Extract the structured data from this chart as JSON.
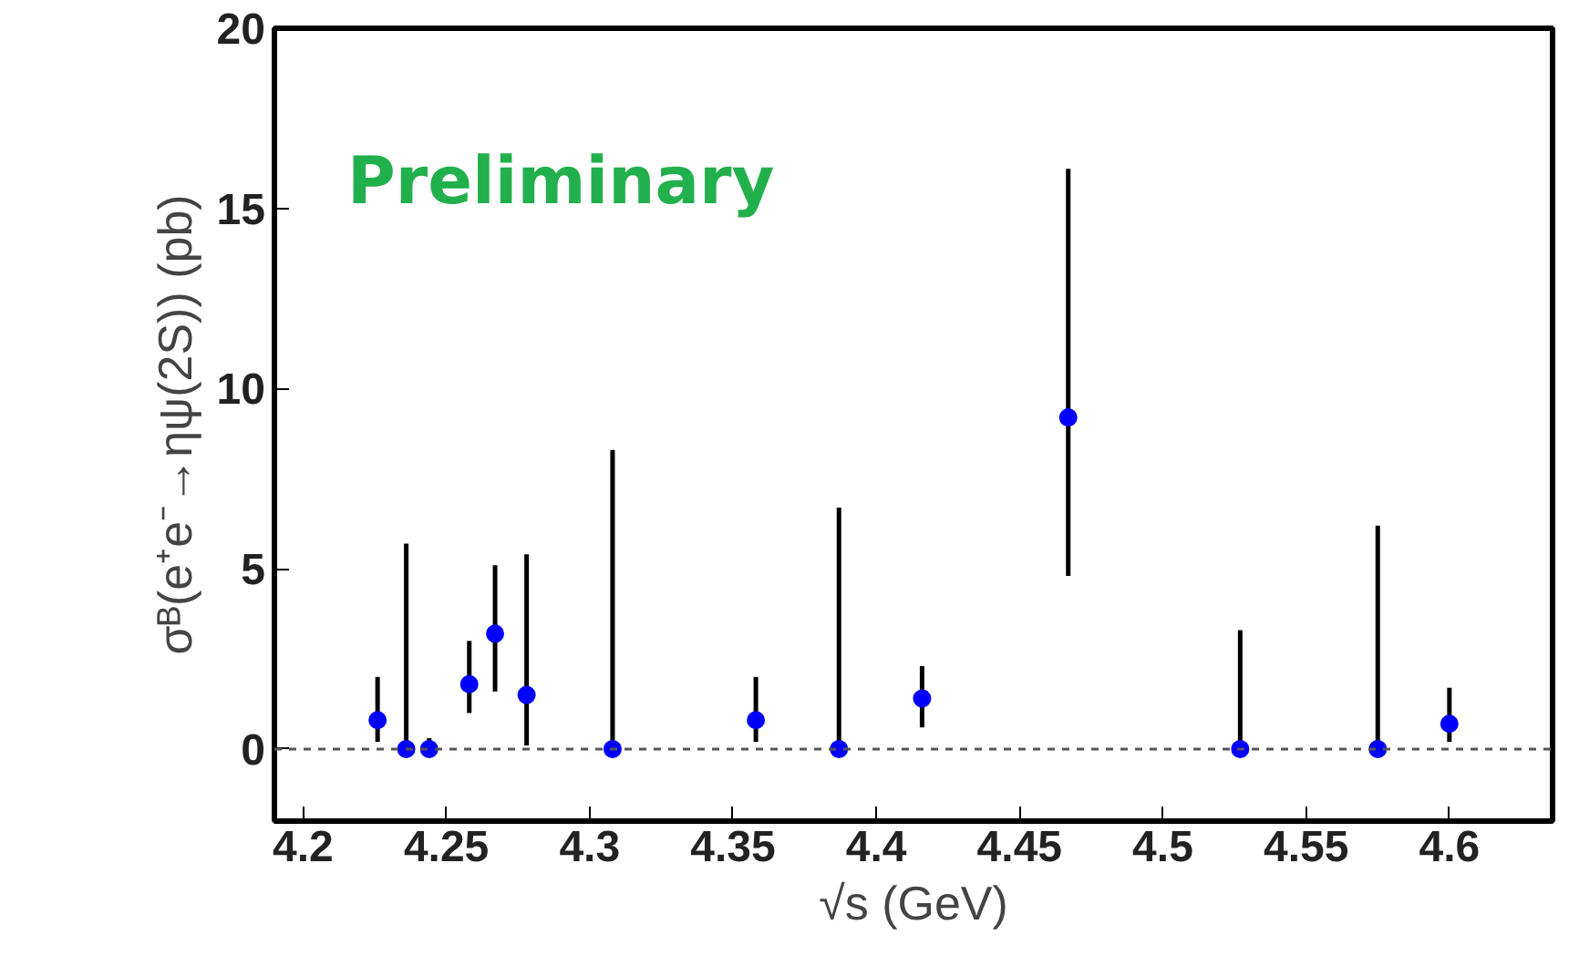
{
  "chart_data": {
    "type": "scatter",
    "xlabel": "√s (GeV)",
    "ylabel": "σᴮ(e⁺e⁻→ηψ(2S)) (pb)",
    "x": [
      4.226,
      4.236,
      4.244,
      4.258,
      4.267,
      4.278,
      4.308,
      4.358,
      4.387,
      4.416,
      4.467,
      4.527,
      4.575,
      4.6
    ],
    "values": [
      0.8,
      0,
      0,
      1.8,
      3.2,
      1.5,
      0,
      0.8,
      0,
      1.4,
      9.2,
      0,
      0,
      0.7
    ],
    "errors": [
      [
        0.2,
        2.0
      ],
      [
        0,
        5.7
      ],
      [
        0,
        0.3
      ],
      [
        1.0,
        3.0
      ],
      [
        1.6,
        5.1
      ],
      [
        0.1,
        5.4
      ],
      [
        0,
        8.3
      ],
      [
        0.2,
        2.0
      ],
      [
        0,
        6.7
      ],
      [
        0.6,
        2.3
      ],
      [
        4.8,
        16.1
      ],
      [
        0,
        3.3
      ],
      [
        0,
        6.2
      ],
      [
        0.2,
        1.7
      ]
    ],
    "color": "#0000ff",
    "marker": "circle",
    "xlim": [
      4.19,
      4.636
    ],
    "ylim": [
      -2,
      20
    ],
    "xticks": [
      4.2,
      4.25,
      4.3,
      4.35,
      4.4,
      4.45,
      4.5,
      4.55,
      4.6
    ],
    "yticks": [
      0,
      5,
      10,
      15,
      20
    ],
    "ref_lines": [
      {
        "axis": "y",
        "value": 0,
        "label": null,
        "color": "#555555",
        "line_style": "dashed"
      }
    ],
    "annotations": [
      "Preliminary"
    ],
    "grid": false
  }
}
